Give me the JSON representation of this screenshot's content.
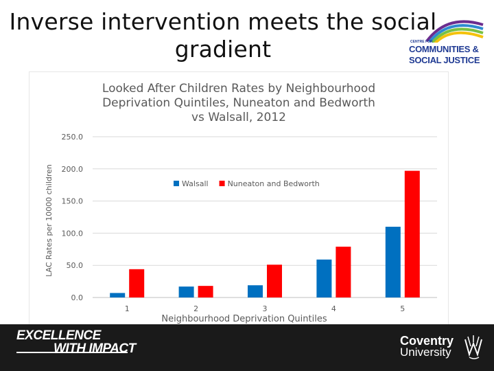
{
  "slide": {
    "title_line1": "Inverse intervention meets the social",
    "title_line2": "gradient"
  },
  "logo": {
    "small_text": "CENTRE FOR",
    "line1": "COMMUNITIES &",
    "line2": "SOCIAL JUSTICE",
    "arc_colors": [
      "#6b2d8f",
      "#2e8bd0",
      "#7ac143",
      "#f4c20d"
    ]
  },
  "footer": {
    "tagline_line1": "EXCELLENCE",
    "tagline_line2": "WITH IMPACT",
    "university_line1": "Coventry",
    "university_line2": "University"
  },
  "chart_data": {
    "type": "bar",
    "title_lines": [
      "Looked After Children Rates by Neighbourhood",
      "Deprivation Quintiles, Nuneaton and Bedworth",
      "vs Walsall, 2012"
    ],
    "xlabel": "Neighbourhood Deprivation Quintiles",
    "ylabel": "LAC Rates per 10000 children",
    "categories": [
      "1",
      "2",
      "3",
      "4",
      "5"
    ],
    "series": [
      {
        "name": "Walsall",
        "color": "#0070c0",
        "values": [
          7,
          17,
          19,
          59,
          110
        ]
      },
      {
        "name": "Nuneaton and Bedworth",
        "color": "#ff0000",
        "values": [
          44,
          18,
          51,
          79,
          197
        ]
      }
    ],
    "ylim": [
      0,
      250
    ],
    "yticks": [
      "0.0",
      "50.0",
      "100.0",
      "150.0",
      "200.0",
      "250.0"
    ],
    "ytick_values": [
      0,
      50,
      100,
      150,
      200,
      250
    ],
    "grid": true,
    "legend_position": "upper-left"
  }
}
